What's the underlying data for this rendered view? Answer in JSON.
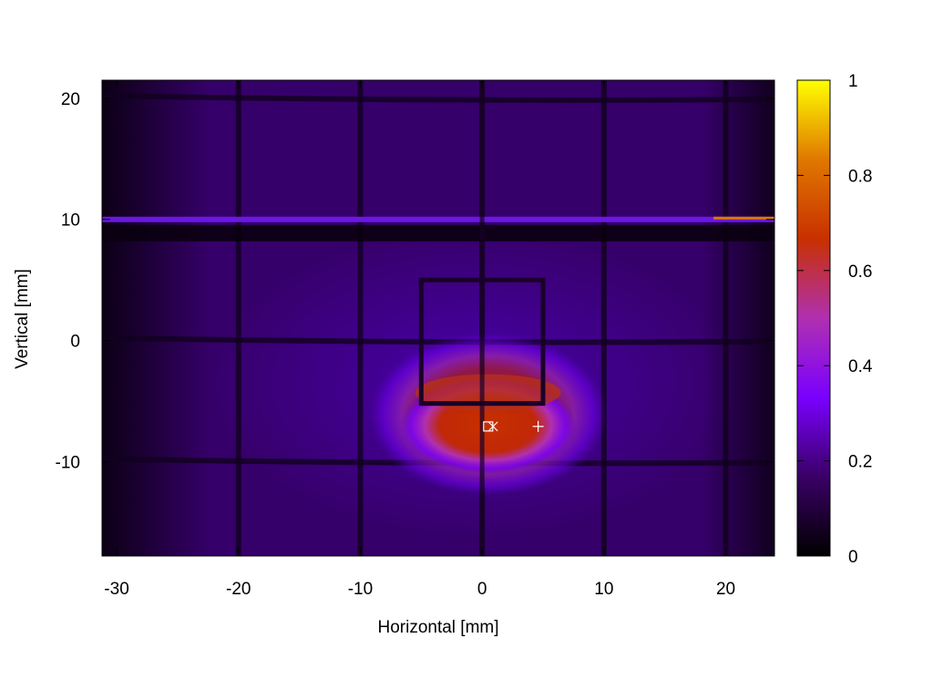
{
  "chart_data": {
    "type": "heatmap",
    "title": "",
    "xlabel": "Horizontal [mm]",
    "ylabel": "Vertical [mm]",
    "xlim": [
      -31.2,
      24
    ],
    "ylim": [
      -17.8,
      21.5
    ],
    "x_ticks": [
      -30,
      -20,
      -10,
      0,
      10,
      20
    ],
    "y_ticks": [
      -10,
      0,
      10,
      20
    ],
    "colorbar": {
      "range": [
        0,
        1
      ],
      "ticks": [
        0,
        0.2,
        0.4,
        0.6,
        0.8,
        1
      ],
      "palette": [
        "#000000",
        "#3a0066",
        "#7a00ff",
        "#b030b0",
        "#c83000",
        "#e07800",
        "#ffff00"
      ]
    },
    "grid_lines_mm": {
      "vertical": [
        -20,
        -10,
        0,
        10,
        20
      ],
      "horizontal": [
        -10,
        0,
        20
      ],
      "horizontal_band": 10
    },
    "hot_spot": {
      "center": [
        0.5,
        -7
      ],
      "radius_x": 5.5,
      "radius_y": 4,
      "peak": 0.55
    },
    "inner_frame": {
      "x": [
        -5,
        5
      ],
      "y": [
        -5.2,
        5
      ]
    },
    "markers": [
      {
        "symbol": "square",
        "x": 0.5,
        "y": -7.1
      },
      {
        "symbol": "x",
        "x": 0.9,
        "y": -7.1
      },
      {
        "symbol": "plus",
        "x": 4.6,
        "y": -7.1
      }
    ]
  }
}
